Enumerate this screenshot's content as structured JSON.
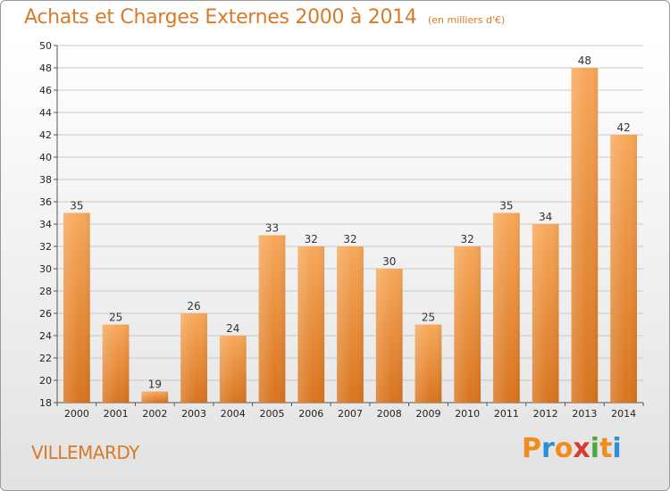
{
  "title": {
    "main": "Achats et Charges Externes 2000 à 2014",
    "unit": "(en milliers d'€)"
  },
  "place_name": "VILLEMARDY",
  "brand": {
    "letters": [
      "P",
      "r",
      "o",
      "x",
      "i",
      "t",
      "i"
    ],
    "colors": [
      "#f08c1c",
      "#2d8fd5",
      "#f08c1c",
      "#d63a2f",
      "#4aa83c",
      "#f08c1c",
      "#2d8fd5"
    ]
  },
  "chart_data": {
    "type": "bar",
    "title": "Achats et Charges Externes 2000 à 2014",
    "subtitle": "(en milliers d'€)",
    "xlabel": "",
    "ylabel": "",
    "categories": [
      "2000",
      "2001",
      "2002",
      "2003",
      "2004",
      "2005",
      "2006",
      "2007",
      "2008",
      "2009",
      "2010",
      "2011",
      "2012",
      "2013",
      "2014"
    ],
    "values": [
      35,
      25,
      19,
      26,
      24,
      33,
      32,
      32,
      30,
      25,
      32,
      35,
      34,
      48,
      42
    ],
    "ylim": [
      18,
      50
    ],
    "yticks": [
      "18",
      "20",
      "22",
      "24",
      "26",
      "28",
      "30",
      "32",
      "34",
      "36",
      "38",
      "40",
      "42",
      "44",
      "46",
      "48",
      "50"
    ],
    "grid": true,
    "bar_color_top": "#f7a85a",
    "bar_color_bottom": "#d8741e"
  }
}
